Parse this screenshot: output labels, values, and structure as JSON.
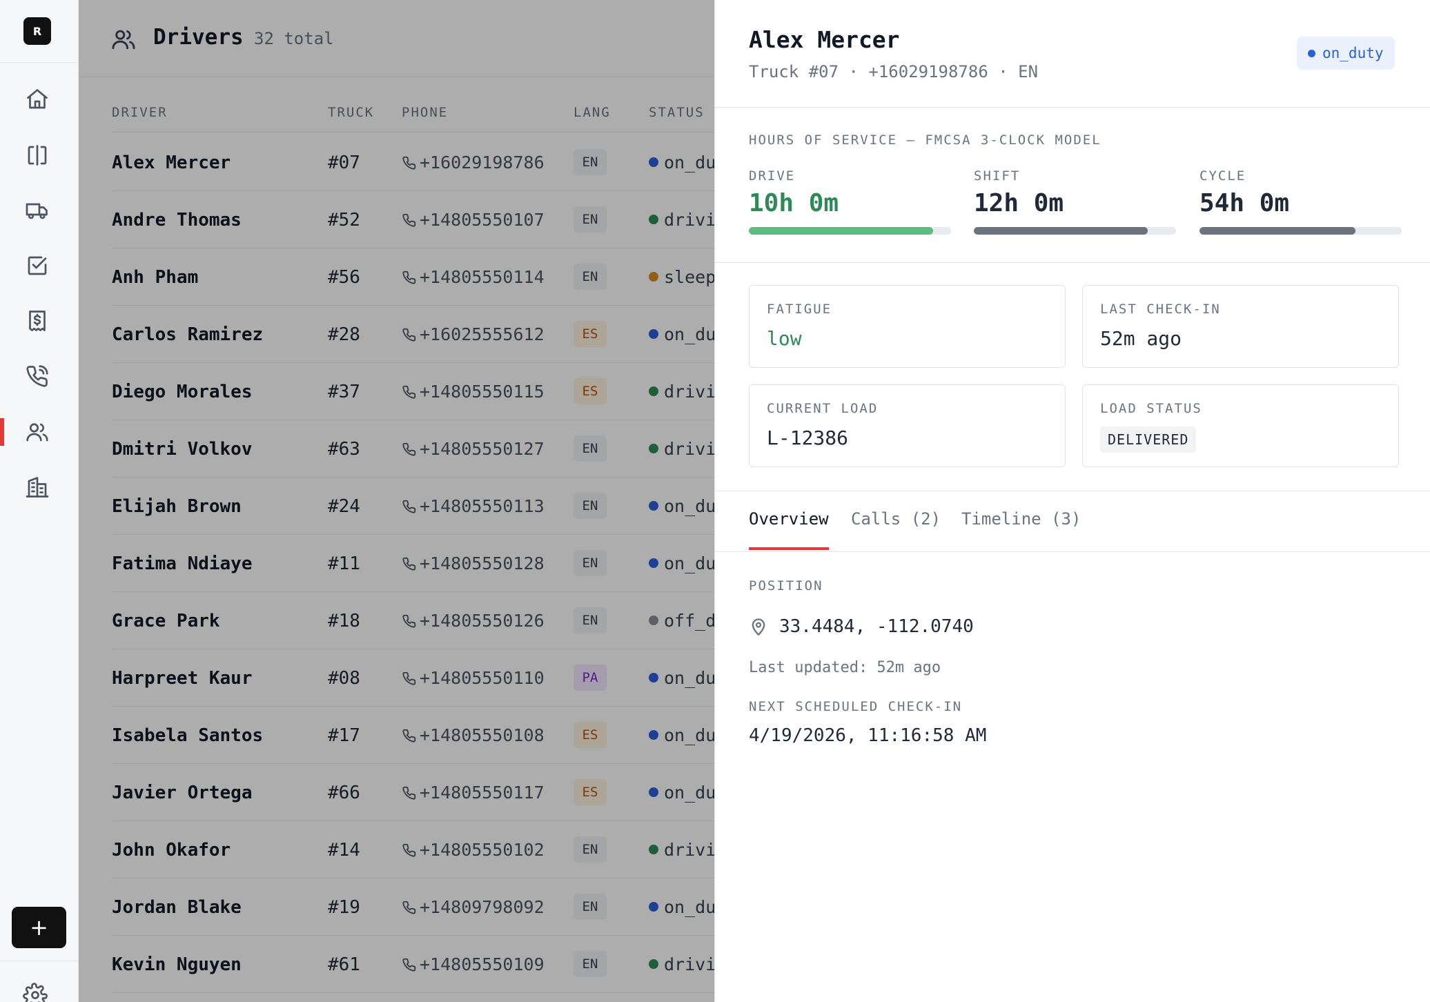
{
  "sidebar": {
    "logo": "R",
    "nav": [
      {
        "name": "home",
        "icon": "home-icon"
      },
      {
        "name": "dispatch",
        "icon": "columns-icon"
      },
      {
        "name": "trucks",
        "icon": "truck-icon"
      },
      {
        "name": "tasks",
        "icon": "checkbox-icon"
      },
      {
        "name": "billing",
        "icon": "receipt-dollar-icon"
      },
      {
        "name": "calls",
        "icon": "phone-call-icon"
      },
      {
        "name": "drivers",
        "icon": "users-icon",
        "active": true
      },
      {
        "name": "facilities",
        "icon": "building-icon"
      }
    ],
    "add_label": "+"
  },
  "header": {
    "title": "Drivers",
    "count": "32 total"
  },
  "table": {
    "columns": [
      "DRIVER",
      "TRUCK",
      "PHONE",
      "LANG",
      "STATUS"
    ],
    "rows": [
      {
        "name": "Alex Mercer",
        "truck": "#07",
        "phone": "+16029198786",
        "lang": "EN",
        "status": "on_duty",
        "color": "#2b5fd9"
      },
      {
        "name": "Andre Thomas",
        "truck": "#52",
        "phone": "+14805550107",
        "lang": "EN",
        "status": "driving",
        "color": "#2e8b57"
      },
      {
        "name": "Anh Pham",
        "truck": "#56",
        "phone": "+14805550114",
        "lang": "EN",
        "status": "sleeper",
        "color": "#d98b1f"
      },
      {
        "name": "Carlos Ramirez",
        "truck": "#28",
        "phone": "+16025555612",
        "lang": "ES",
        "status": "on_duty",
        "color": "#2b5fd9"
      },
      {
        "name": "Diego Morales",
        "truck": "#37",
        "phone": "+14805550115",
        "lang": "ES",
        "status": "driving",
        "color": "#2e8b57"
      },
      {
        "name": "Dmitri Volkov",
        "truck": "#63",
        "phone": "+14805550127",
        "lang": "EN",
        "status": "driving",
        "color": "#2e8b57"
      },
      {
        "name": "Elijah Brown",
        "truck": "#24",
        "phone": "+14805550113",
        "lang": "EN",
        "status": "on_duty",
        "color": "#2b5fd9"
      },
      {
        "name": "Fatima Ndiaye",
        "truck": "#11",
        "phone": "+14805550128",
        "lang": "EN",
        "status": "on_duty",
        "color": "#2b5fd9"
      },
      {
        "name": "Grace Park",
        "truck": "#18",
        "phone": "+14805550126",
        "lang": "EN",
        "status": "off_duty",
        "color": "#8a9099"
      },
      {
        "name": "Harpreet Kaur",
        "truck": "#08",
        "phone": "+14805550110",
        "lang": "PA",
        "status": "on_duty",
        "color": "#2b5fd9"
      },
      {
        "name": "Isabela Santos",
        "truck": "#17",
        "phone": "+14805550108",
        "lang": "ES",
        "status": "on_duty",
        "color": "#2b5fd9"
      },
      {
        "name": "Javier Ortega",
        "truck": "#66",
        "phone": "+14805550117",
        "lang": "ES",
        "status": "on_duty",
        "color": "#2b5fd9"
      },
      {
        "name": "John Okafor",
        "truck": "#14",
        "phone": "+14805550102",
        "lang": "EN",
        "status": "driving",
        "color": "#2e8b57"
      },
      {
        "name": "Jordan Blake",
        "truck": "#19",
        "phone": "+14809798092",
        "lang": "EN",
        "status": "on_duty",
        "color": "#2b5fd9"
      },
      {
        "name": "Kevin Nguyen",
        "truck": "#61",
        "phone": "+14805550109",
        "lang": "EN",
        "status": "driving",
        "color": "#2e8b57"
      }
    ]
  },
  "panel": {
    "name": "Alex Mercer",
    "subtitle": "Truck #07 · +16029198786 · EN",
    "status_badge": "on_duty",
    "status_color": "#2b5fd9",
    "hos_title": "HOURS OF SERVICE — FMCSA 3-CLOCK MODEL",
    "clocks": [
      {
        "label": "DRIVE",
        "value": "10h 0m",
        "fraction": 0.91,
        "color": "#5bbd82",
        "text_color": "#2e8b57"
      },
      {
        "label": "SHIFT",
        "value": "12h 0m",
        "fraction": 0.86,
        "color": "#6b7280",
        "text_color": "#1f2937"
      },
      {
        "label": "CYCLE",
        "value": "54h 0m",
        "fraction": 0.77,
        "color": "#6b7280",
        "text_color": "#1f2937"
      }
    ],
    "fatigue": {
      "label": "FATIGUE",
      "value": "low"
    },
    "last_checkin": {
      "label": "LAST CHECK-IN",
      "value": "52m ago"
    },
    "current_load": {
      "label": "CURRENT LOAD",
      "value": "L-12386"
    },
    "load_status": {
      "label": "LOAD STATUS",
      "value": "DELIVERED"
    },
    "tabs": [
      "Overview",
      "Calls (2)",
      "Timeline (3)"
    ],
    "position": {
      "label": "POSITION",
      "coords": "33.4484, -112.0740",
      "updated": "Last updated: 52m ago"
    },
    "next_checkin": {
      "label": "NEXT SCHEDULED CHECK-IN",
      "value": "4/19/2026, 11:16:58 AM"
    }
  }
}
